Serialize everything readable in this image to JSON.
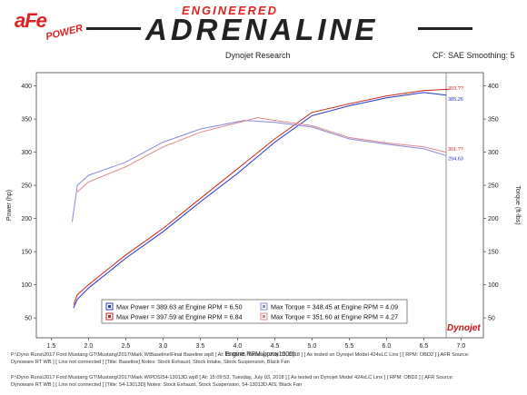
{
  "brand": {
    "logo_text": "aFe",
    "logo_sub": "POWER",
    "banner_top": "ENGINEERED",
    "banner_main": "ADRENALINE"
  },
  "header": {
    "center": "Dynojet Research",
    "right": "CF: SAE Smoothing: 5"
  },
  "legend": [
    {
      "text": "Max Power = 389.63 at Engine RPM = 6.50",
      "color": "#2233cc"
    },
    {
      "text": "Max Power = 397.59 at Engine RPM = 6.84",
      "color": "#cc2222"
    },
    {
      "text": "Max Torque = 348.45 at Engine RPM = 4.09",
      "color": "#8888dd"
    },
    {
      "text": "Max Torque = 351.60 at Engine RPM = 4.27",
      "color": "#dd8888"
    }
  ],
  "footer": {
    "line1": "P:\\Dyno Runs\\2017 Ford Mustang GT\\Mustang\\2017\\Mark W\\Baseline\\Final Baseline.wp8 [ At: 15:05:48, Tuesday, July 03, 2018 ] [ As tested on Dynojet Model 424xLC Linx ] [ RPM: OBD2 ] [ AFR Source:",
    "line2": "Dynoware RT WB ] [ Linx not connected ] [Title: Baseline]  Notes: Stock Exhaust, Stock Intake, Stock Suspension, Black Fan",
    "line3": "P:\\Dyno Runs\\2017 Ford Mustang GT\\Mustang\\2017\\Mark W\\PDS\\54-13013D.wp8 [ At: 15:09:53, Tuesday, July 03, 2018 ] [ As tested on Dynojet Model 424xLC Linx ] [ RPM: OBD2 ] [ AFR Source:",
    "line4": "Dynoware RT WB ] [ Linx not connected ] [Title: 54-13013D]  Notes: Stock Exhaust, Stock Suspension, 54-13013D AIS, Black Fan"
  },
  "watermark": "Dynojet",
  "chart_data": {
    "type": "line",
    "xlabel": "Engine RPM (rpmx1000)",
    "ylabel_left": "Power (hp)",
    "ylabel_right": "Torque (ft-lbs)",
    "xlim": [
      1.3,
      7.3
    ],
    "ylim": [
      20,
      420
    ],
    "xticks": [
      "1.5",
      "2.0",
      "2.5",
      "3.0",
      "3.5",
      "4.0",
      "4.5",
      "5.0",
      "5.5",
      "6.0",
      "6.5",
      "7.0"
    ],
    "yticks": [
      "50",
      "100",
      "150",
      "200",
      "250",
      "300",
      "350",
      "400"
    ],
    "cursor_x": 6.8,
    "cursor_labels": {
      "power_blue": "385.26",
      "power_red": "393.??",
      "torque_blue": "294.63",
      "torque_red": "301.??"
    },
    "series": [
      {
        "color": "#2233cc",
        "x": [
          1.8,
          1.85,
          2.0,
          2.5,
          3.0,
          3.5,
          4.0,
          4.5,
          5.0,
          5.5,
          6.0,
          6.5,
          6.8
        ],
        "y": [
          65,
          78,
          95,
          140,
          180,
          225,
          268,
          315,
          355,
          370,
          382,
          390,
          386
        ]
      },
      {
        "color": "#cc2222",
        "x": [
          1.8,
          1.85,
          2.0,
          2.5,
          3.0,
          3.5,
          4.0,
          4.5,
          5.0,
          5.5,
          6.0,
          6.5,
          6.84
        ],
        "y": [
          70,
          85,
          100,
          145,
          185,
          230,
          275,
          320,
          360,
          373,
          385,
          393,
          395
        ]
      },
      {
        "color": "#8888dd",
        "x": [
          1.78,
          1.85,
          2.0,
          2.5,
          3.0,
          3.5,
          4.09,
          4.5,
          5.0,
          5.5,
          6.0,
          6.5,
          6.8
        ],
        "y": [
          195,
          250,
          265,
          285,
          315,
          335,
          348,
          345,
          338,
          320,
          312,
          305,
          295
        ]
      },
      {
        "color": "#dd8888",
        "x": [
          1.85,
          2.0,
          2.5,
          3.0,
          3.5,
          4.27,
          4.5,
          5.0,
          5.5,
          6.0,
          6.5,
          6.8
        ],
        "y": [
          240,
          255,
          278,
          308,
          330,
          352,
          348,
          340,
          322,
          314,
          308,
          300
        ]
      }
    ]
  }
}
